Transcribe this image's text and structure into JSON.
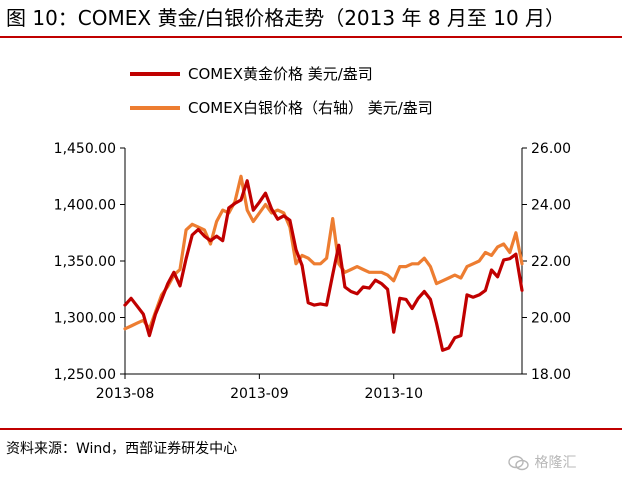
{
  "title": "图 10：COMEX 黄金/白银价格走势（2013 年 8 月至 10 月）",
  "source": "资料来源：Wind，西部证券研发中心",
  "watermark": "格隆汇",
  "chart_data": {
    "type": "line",
    "x_tick_labels": [
      "2013-08",
      "2013-09",
      "2013-10"
    ],
    "x_tick_positions": [
      0,
      22,
      44
    ],
    "n_points": 66,
    "y_left": {
      "range": [
        1250,
        1450
      ],
      "ticks": [
        "1,250.00",
        "1,300.00",
        "1,350.00",
        "1,400.00",
        "1,450.00"
      ],
      "tick_values": [
        1250,
        1300,
        1350,
        1400,
        1450
      ]
    },
    "y_right": {
      "range": [
        18,
        26
      ],
      "ticks": [
        "18.00",
        "20.00",
        "22.00",
        "24.00",
        "26.00"
      ],
      "tick_values": [
        18,
        20,
        22,
        24,
        26
      ]
    },
    "grid": false,
    "legend_position": "top",
    "series": [
      {
        "name": "COMEX黄金价格 美元/盎司",
        "axis": "left",
        "color": "#c00000",
        "values": [
          1311,
          1317,
          1310,
          1303,
          1284,
          1303,
          1316,
          1330,
          1340,
          1328,
          1352,
          1373,
          1378,
          1372,
          1368,
          1372,
          1368,
          1397,
          1401,
          1404,
          1421,
          1395,
          1402,
          1410,
          1396,
          1387,
          1390,
          1386,
          1360,
          1346,
          1313,
          1311,
          1312,
          1311,
          1338,
          1364,
          1327,
          1323,
          1321,
          1327,
          1326,
          1333,
          1330,
          1325,
          1287,
          1317,
          1316,
          1308,
          1317,
          1323,
          1316,
          1295,
          1271,
          1273,
          1282,
          1284,
          1320,
          1318,
          1320,
          1324,
          1342,
          1336,
          1351,
          1352,
          1356,
          1324
        ]
      },
      {
        "name": "COMEX白银价格（右轴） 美元/盎司",
        "axis": "right",
        "color": "#ed7d31",
        "values": [
          19.6,
          19.7,
          19.8,
          19.9,
          19.6,
          20.2,
          20.8,
          21.1,
          21.5,
          21.7,
          23.1,
          23.3,
          23.2,
          23.1,
          22.6,
          23.4,
          23.8,
          23.7,
          24.1,
          25.0,
          23.8,
          23.4,
          23.7,
          24.0,
          23.7,
          23.8,
          23.7,
          23.2,
          21.9,
          22.2,
          22.1,
          21.9,
          21.9,
          22.1,
          23.5,
          21.9,
          21.6,
          21.7,
          21.8,
          21.7,
          21.6,
          21.6,
          21.6,
          21.5,
          21.3,
          21.8,
          21.8,
          21.9,
          21.9,
          22.1,
          21.8,
          21.2,
          21.3,
          21.4,
          21.5,
          21.4,
          21.8,
          21.9,
          22.0,
          22.3,
          22.2,
          22.5,
          22.6,
          22.3,
          23.0,
          21.9
        ]
      }
    ]
  }
}
